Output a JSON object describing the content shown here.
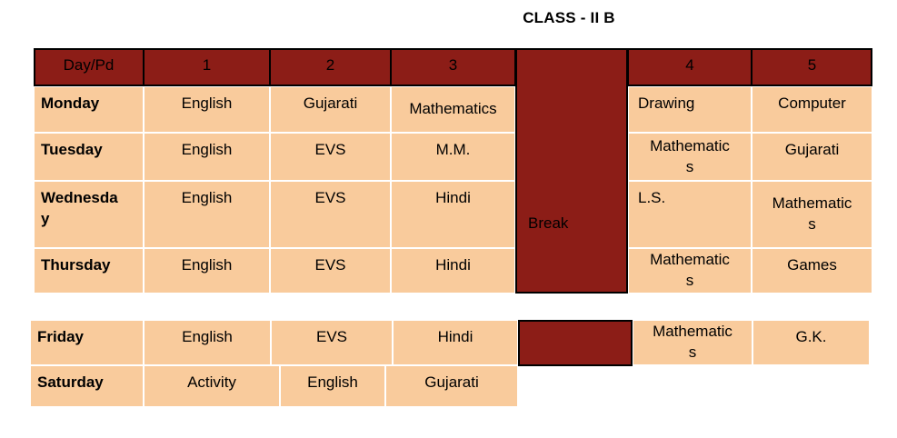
{
  "title": "CLASS - II B",
  "colors": {
    "header_bg": "#8C1D17",
    "cell_bg": "#F9CB9C",
    "border": "#000000",
    "gap": "#FFFFFF",
    "text": "#000000"
  },
  "timetable": {
    "header": [
      "Day/Pd",
      "1",
      "2",
      "3",
      "",
      "4",
      "5"
    ],
    "break_label": "Break",
    "days_before_weekend": [
      {
        "day": "Monday",
        "periods": [
          "English",
          "Gujarati",
          "Mathematics",
          "Drawing",
          "Computer"
        ]
      },
      {
        "day": "Tuesday",
        "periods": [
          "English",
          "EVS",
          "M.M.",
          "Mathematics",
          "Gujarati"
        ]
      },
      {
        "day": "Wednesday",
        "periods": [
          "English",
          "EVS",
          "Hindi",
          "L.S.",
          "Mathematics"
        ]
      },
      {
        "day": "Thursday",
        "periods": [
          "English",
          "EVS",
          "Hindi",
          "Mathematics",
          "Games"
        ]
      }
    ],
    "weekend_rows": [
      {
        "day": "Friday",
        "periods": [
          "English",
          "EVS",
          "Hindi",
          "Mathematics",
          "G.K."
        ]
      },
      {
        "day": "Saturday",
        "periods": [
          "Activity",
          "English",
          "Gujarati"
        ]
      }
    ]
  }
}
